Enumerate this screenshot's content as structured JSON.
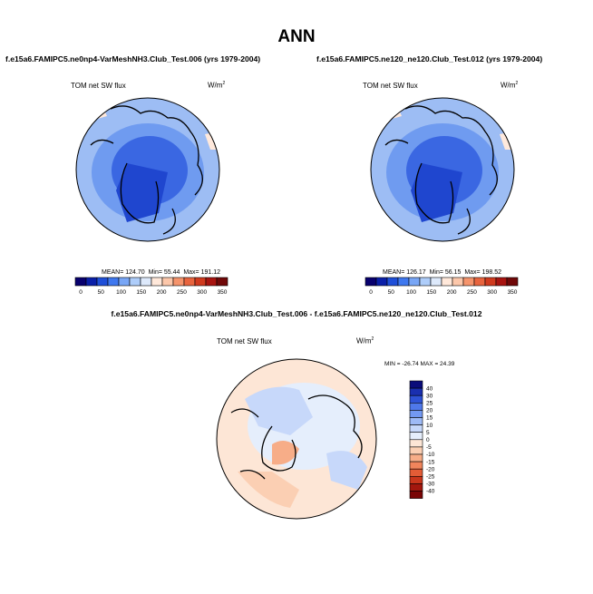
{
  "page": {
    "main_title": "ANN"
  },
  "panels": [
    {
      "case_title": "f.e15a6.FAMIPC5.ne0np4-VarMeshNH3.Club_Test.006 (yrs 1979-2004)",
      "variable": "TOM net SW flux",
      "units_base": "W/m",
      "units_exp": "2",
      "mean_label": "MEAN=",
      "mean_value": "124.70",
      "min_label": "Min=",
      "min_value": "55.44",
      "max_label": "Max=",
      "max_value": "191.12"
    },
    {
      "case_title": "f.e15a6.FAMIPC5.ne120_ne120.Club_Test.012 (yrs 1979-2004)",
      "variable": "TOM net SW flux",
      "units_base": "W/m",
      "units_exp": "2",
      "mean_label": "MEAN=",
      "mean_value": "126.17",
      "min_label": "Min=",
      "min_value": "56.15",
      "max_label": "Max=",
      "max_value": "198.52"
    }
  ],
  "difference": {
    "title": "f.e15a6.FAMIPC5.ne0np4-VarMeshNH3.Club_Test.006 - f.e15a6.FAMIPC5.ne120_ne120.Club_Test.012",
    "variable": "TOM net SW flux",
    "units_base": "W/m",
    "units_exp": "2",
    "stats_text": "MIN = -26.74 MAX =  24.39"
  },
  "colors": {
    "field_scale": [
      "#08006e",
      "#0a1fa8",
      "#1f4fd8",
      "#3f78ef",
      "#78a6f6",
      "#aecdfa",
      "#dde9fb",
      "#ffe8da",
      "#fcc7aa",
      "#f5946c",
      "#e8643e",
      "#d03a1e",
      "#a81410",
      "#700808"
    ],
    "diff_scale": [
      "#0a0c7a",
      "#1a2fb0",
      "#2f52d6",
      "#4f78ea",
      "#7399f2",
      "#9ebaf6",
      "#c7d8fa",
      "#e5eefc",
      "#fde6d6",
      "#fbcfb3",
      "#f7ad88",
      "#f0855c",
      "#e35c36",
      "#c9361c",
      "#a3170e",
      "#7a0505"
    ],
    "ocean_blue": "#8fb2f1",
    "land_blue": "#2d5ad6",
    "sea_ice_blue": "#4d7cea"
  },
  "chart_data": [
    {
      "type": "polar-map",
      "title": "f.e15a6.FAMIPC5.ne0np4-VarMeshNH3.Club_Test.006 (yrs 1979-2004)",
      "variable": "TOM net SW flux",
      "units": "W/m2",
      "projection": "north-polar-stereographic",
      "colorbar_levels": [
        0,
        50,
        100,
        150,
        200,
        250,
        300,
        350
      ],
      "colorbar_boundaries": [
        0,
        25,
        50,
        75,
        100,
        125,
        150,
        175,
        200,
        225,
        250,
        275,
        300,
        325,
        350
      ],
      "mean": 124.7,
      "min": 55.44,
      "max": 191.12
    },
    {
      "type": "polar-map",
      "title": "f.e15a6.FAMIPC5.ne120_ne120.Club_Test.012 (yrs 1979-2004)",
      "variable": "TOM net SW flux",
      "units": "W/m2",
      "projection": "north-polar-stereographic",
      "colorbar_levels": [
        0,
        50,
        100,
        150,
        200,
        250,
        300,
        350
      ],
      "colorbar_boundaries": [
        0,
        25,
        50,
        75,
        100,
        125,
        150,
        175,
        200,
        225,
        250,
        275,
        300,
        325,
        350
      ],
      "mean": 126.17,
      "min": 56.15,
      "max": 198.52
    },
    {
      "type": "polar-map-difference",
      "title": "f.e15a6.FAMIPC5.ne0np4-VarMeshNH3.Club_Test.006 - f.e15a6.FAMIPC5.ne120_ne120.Club_Test.012",
      "variable": "TOM net SW flux",
      "units": "W/m2",
      "projection": "north-polar-stereographic",
      "colorbar_levels": [
        40,
        30,
        25,
        20,
        15,
        10,
        5,
        0,
        -5,
        -10,
        -15,
        -20,
        -25,
        -30,
        -40
      ],
      "min": -26.74,
      "max": 24.39
    }
  ]
}
